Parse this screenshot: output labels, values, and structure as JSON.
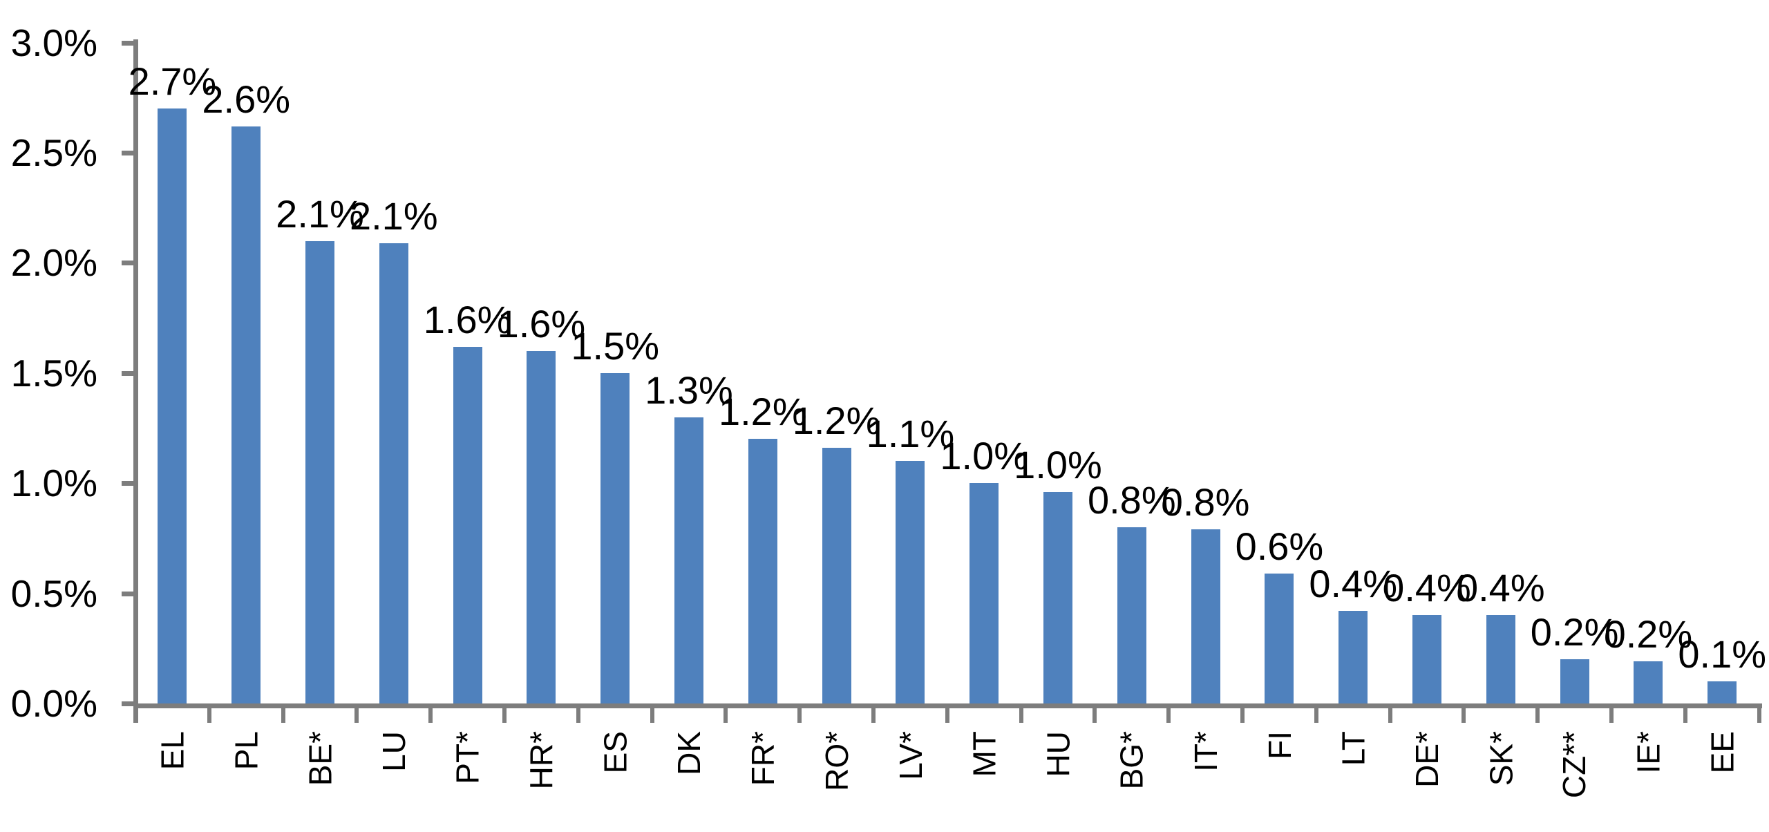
{
  "chart_data": {
    "type": "bar",
    "title": "",
    "xlabel": "",
    "ylabel": "",
    "grid": false,
    "legend_position": "none",
    "categories": [
      "EL",
      "PL",
      "BE*",
      "LU",
      "PT*",
      "HR*",
      "ES",
      "DK",
      "FR*",
      "RO*",
      "LV*",
      "MT",
      "HU",
      "BG*",
      "IT*",
      "FI",
      "LT",
      "DE*",
      "SK*",
      "CZ**",
      "IE*",
      "EE"
    ],
    "values": [
      2.7,
      2.6,
      2.1,
      2.1,
      1.6,
      1.6,
      1.5,
      1.3,
      1.2,
      1.2,
      1.1,
      1.0,
      1.0,
      0.8,
      0.8,
      0.6,
      0.4,
      0.4,
      0.4,
      0.2,
      0.2,
      0.1
    ],
    "data_labels": [
      "2.7%",
      "2.6%",
      "2.1%",
      "2.1%",
      "1.6%",
      "1.6%",
      "1.5%",
      "1.3%",
      "1.2%",
      "1.2%",
      "1.1%",
      "1.0%",
      "1.0%",
      "0.8%",
      "0.8%",
      "0.6%",
      "0.4%",
      "0.4%",
      "0.4%",
      "0.2%",
      "0.2%",
      "0.1%"
    ],
    "bar_heights_pct": [
      2.7,
      2.62,
      2.1,
      2.09,
      1.62,
      1.6,
      1.5,
      1.3,
      1.2,
      1.16,
      1.1,
      1.0,
      0.96,
      0.8,
      0.79,
      0.59,
      0.42,
      0.4,
      0.4,
      0.2,
      0.19,
      0.1
    ],
    "y_ticks": [
      "0.0%",
      "0.5%",
      "1.0%",
      "1.5%",
      "2.0%",
      "2.5%",
      "3.0%"
    ],
    "ylim": [
      0.0,
      3.0
    ],
    "colors": {
      "bar_fill": "#4f81bd",
      "axis": "#7d7d7d",
      "label_text": "#000000",
      "background": "#ffffff"
    }
  }
}
